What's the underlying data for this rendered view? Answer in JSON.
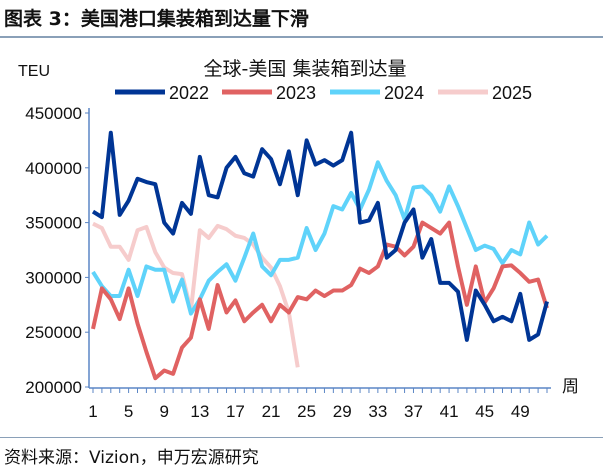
{
  "figure_title": "图表 3：美国港口集装箱到达量下滑",
  "source": "资料来源：Vizion，申万宏源研究",
  "chart_data": {
    "type": "line",
    "title": "全球-美国 集装箱到达量",
    "ylabel": "TEU",
    "xlabel": "周",
    "ylim": [
      200000,
      450000
    ],
    "yticks": [
      "200000",
      "250000",
      "300000",
      "350000",
      "400000",
      "450000"
    ],
    "xticks": [
      "1",
      "5",
      "9",
      "13",
      "17",
      "21",
      "25",
      "29",
      "33",
      "37",
      "41",
      "45",
      "49"
    ],
    "xlim": [
      1,
      52
    ],
    "legend": "top",
    "series": [
      {
        "name": "2022",
        "color": "#003595",
        "values": [
          360000,
          355000,
          432000,
          357000,
          370000,
          390000,
          387000,
          385000,
          350000,
          340000,
          368000,
          358000,
          410000,
          375000,
          373000,
          400000,
          410000,
          395000,
          392000,
          417000,
          408000,
          385000,
          415000,
          375000,
          425000,
          403000,
          407000,
          402000,
          407000,
          432000,
          350000,
          352000,
          368000,
          318000,
          325000,
          350000,
          362000,
          318000,
          335000,
          295000,
          295000,
          287000,
          243000,
          288000,
          275000,
          260000,
          264000,
          260000,
          285000,
          243000,
          248000,
          278000
        ]
      },
      {
        "name": "2023",
        "color": "#e06262",
        "values": [
          253000,
          290000,
          280000,
          262000,
          290000,
          258000,
          232000,
          208000,
          215000,
          212000,
          236000,
          245000,
          280000,
          253000,
          293000,
          268000,
          279000,
          260000,
          268000,
          275000,
          260000,
          275000,
          268000,
          282000,
          280000,
          288000,
          283000,
          288000,
          288000,
          293000,
          308000,
          304000,
          310000,
          330000,
          328000,
          320000,
          328000,
          350000,
          345000,
          340000,
          350000,
          310000,
          275000,
          310000,
          277000,
          290000,
          310000,
          311000,
          304000,
          296000,
          298000,
          272000
        ]
      },
      {
        "name": "2024",
        "color": "#5fd3fa",
        "values": [
          305000,
          292000,
          283000,
          283000,
          307000,
          283000,
          310000,
          307000,
          307000,
          278000,
          298000,
          267000,
          280000,
          297000,
          305000,
          312000,
          297000,
          318000,
          340000,
          310000,
          302000,
          316000,
          316000,
          318000,
          345000,
          325000,
          340000,
          365000,
          362000,
          377000,
          362000,
          380000,
          405000,
          388000,
          375000,
          353000,
          382000,
          383000,
          375000,
          360000,
          383000,
          365000,
          345000,
          325000,
          329000,
          326000,
          313000,
          325000,
          321000,
          350000,
          330000,
          338000
        ]
      },
      {
        "name": "2025",
        "color": "#f6cccc",
        "values": [
          349000,
          345000,
          328000,
          328000,
          316000,
          343000,
          346000,
          323000,
          309000,
          304000,
          303000,
          270000,
          343000,
          336000,
          347000,
          344000,
          338000,
          336000,
          330000,
          318000,
          309000,
          292000,
          268000,
          218000
        ]
      }
    ]
  }
}
